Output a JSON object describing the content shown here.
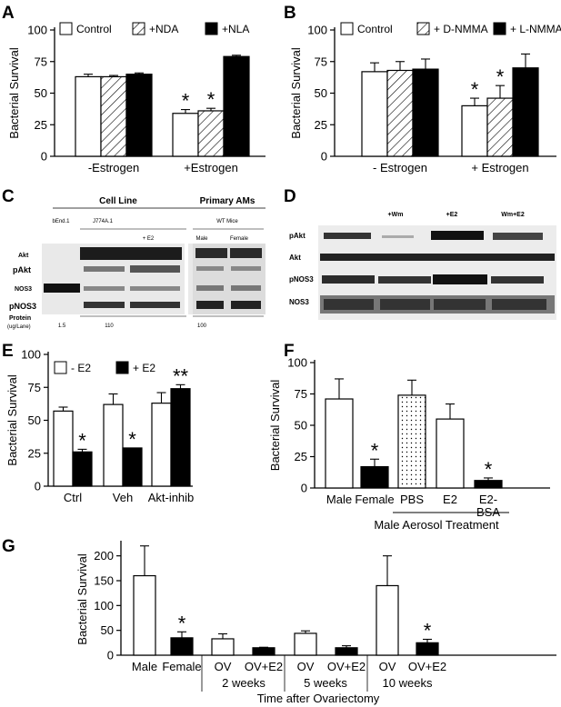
{
  "colors": {
    "white": "#ffffff",
    "black": "#000000",
    "blot_bg": "#e8e8e8",
    "band": "#1a1a1a"
  },
  "chart_data": [
    {
      "panel": "A",
      "type": "bar",
      "ylabel": "Bacterial Survival",
      "ylim": [
        0,
        100
      ],
      "yticks": [
        0,
        25,
        50,
        75,
        100
      ],
      "categories": [
        "-Estrogen",
        "+Estrogen"
      ],
      "series": [
        {
          "name": "Control",
          "pattern": "white",
          "values": [
            63,
            34
          ],
          "errors": [
            2,
            3
          ],
          "stars": [
            "",
            "*"
          ]
        },
        {
          "name": "+NDA",
          "pattern": "hatch",
          "values": [
            63,
            36
          ],
          "errors": [
            1,
            2
          ],
          "stars": [
            "",
            "*"
          ]
        },
        {
          "name": "+NLA",
          "pattern": "black",
          "values": [
            65,
            79
          ],
          "errors": [
            1,
            1
          ],
          "stars": [
            "",
            ""
          ]
        }
      ]
    },
    {
      "panel": "B",
      "type": "bar",
      "ylabel": "Bacterial Survival",
      "ylim": [
        0,
        100
      ],
      "yticks": [
        0,
        25,
        50,
        75,
        100
      ],
      "categories": [
        "- Estrogen",
        "+ Estrogen"
      ],
      "series": [
        {
          "name": "Control",
          "pattern": "white",
          "values": [
            67,
            40
          ],
          "errors": [
            7,
            6
          ],
          "stars": [
            "",
            "*"
          ]
        },
        {
          "name": "+ D-NMMA",
          "pattern": "hatch",
          "values": [
            68,
            46
          ],
          "errors": [
            7,
            10
          ],
          "stars": [
            "",
            "*"
          ]
        },
        {
          "name": "+ L-NMMA",
          "pattern": "black",
          "values": [
            69,
            70
          ],
          "errors": [
            8,
            11
          ],
          "stars": [
            "",
            ""
          ]
        }
      ]
    },
    {
      "panel": "E",
      "type": "bar",
      "ylabel": "Bacterial Survival",
      "ylim": [
        0,
        100
      ],
      "yticks": [
        0,
        25,
        50,
        75,
        100
      ],
      "categories": [
        "Ctrl",
        "Veh",
        "Akt-inhib"
      ],
      "series": [
        {
          "name": "- E2",
          "pattern": "white",
          "values": [
            57,
            62,
            63
          ],
          "errors": [
            3,
            8,
            8
          ],
          "stars": [
            "",
            "",
            ""
          ]
        },
        {
          "name": "+ E2",
          "pattern": "black",
          "values": [
            26,
            29,
            74
          ],
          "errors": [
            2,
            0,
            3
          ],
          "stars": [
            "*",
            "*",
            "**"
          ]
        }
      ]
    },
    {
      "panel": "F",
      "type": "bar",
      "ylabel": "Bacterial Survival",
      "ylim": [
        0,
        100
      ],
      "yticks": [
        0,
        25,
        50,
        75,
        100
      ],
      "categories": [
        "Male",
        "Female",
        "PBS",
        "E2",
        "E2-\nBSA"
      ],
      "bars": [
        {
          "value": 71,
          "error": 16,
          "pattern": "white",
          "star": ""
        },
        {
          "value": 17,
          "error": 6,
          "pattern": "black",
          "star": "*"
        },
        {
          "value": 74,
          "error": 12,
          "pattern": "dots",
          "star": ""
        },
        {
          "value": 55,
          "error": 12,
          "pattern": "white",
          "star": ""
        },
        {
          "value": 6,
          "error": 2,
          "pattern": "black",
          "star": "*"
        }
      ],
      "group_label": "Male Aerosol Treatment"
    },
    {
      "panel": "G",
      "type": "bar",
      "ylabel": "Bacterial Survival",
      "ylim": [
        0,
        225
      ],
      "yticks": [
        0,
        50,
        100,
        150,
        200
      ],
      "categories": [
        "Male",
        "Female",
        "OV",
        "OV+E2",
        "OV",
        "OV+E2",
        "OV",
        "OV+E2"
      ],
      "bars": [
        {
          "value": 160,
          "error": 60,
          "pattern": "white",
          "star": ""
        },
        {
          "value": 35,
          "error": 12,
          "pattern": "black",
          "star": "*"
        },
        {
          "value": 33,
          "error": 10,
          "pattern": "white",
          "star": ""
        },
        {
          "value": 15,
          "error": 1,
          "pattern": "black",
          "star": ""
        },
        {
          "value": 44,
          "error": 5,
          "pattern": "white",
          "star": ""
        },
        {
          "value": 15,
          "error": 4,
          "pattern": "black",
          "star": ""
        },
        {
          "value": 140,
          "error": 60,
          "pattern": "white",
          "star": ""
        },
        {
          "value": 25,
          "error": 7,
          "pattern": "black",
          "star": "*"
        }
      ],
      "group_labels": [
        "2 weeks",
        "5 weeks",
        "10 weeks"
      ],
      "xlabel": "Time after Ovariectomy"
    }
  ],
  "panel_letters": [
    "A",
    "B",
    "C",
    "D",
    "E",
    "F",
    "G"
  ],
  "blotC": {
    "header_cell": "Cell Line",
    "header_primary": "Primary AMs",
    "cols": [
      "bEnd.1",
      "J774A.1",
      "WT Mice"
    ],
    "sub": [
      "+ E2",
      "Male",
      "Female"
    ],
    "rows": [
      "Akt",
      "pAkt",
      "NOS3",
      "pNOS3"
    ],
    "protein_label": "Protein",
    "protein_unit": "(ug/Lane)",
    "protein_vals": [
      "1.5",
      "110",
      "100"
    ]
  },
  "blotD": {
    "cols": [
      "+Wm",
      "+E2",
      "Wm+E2"
    ],
    "rows": [
      "pAkt",
      "Akt",
      "pNOS3",
      "NOS3"
    ]
  }
}
